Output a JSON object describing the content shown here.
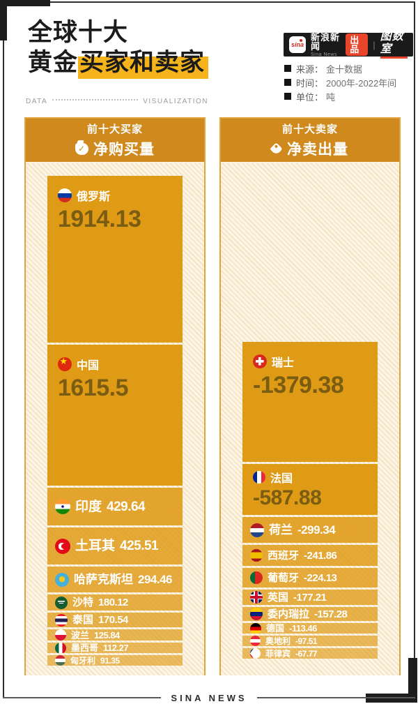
{
  "header": {
    "title_line1": "全球十大",
    "title_line2_prefix": "黄金",
    "title_line2_highlight": "买家和卖家",
    "brand": {
      "sina_mark": "sina",
      "name_cn": "新浪新闻",
      "name_en": "Sina News",
      "badge": "出品",
      "divider": "|",
      "studio": "图数室"
    },
    "meta": [
      {
        "label": "来源：",
        "value": "金十数据"
      },
      {
        "label": "时间：",
        "value": "2000年-2022年间"
      },
      {
        "label": "单位：",
        "value": "吨"
      }
    ]
  },
  "divider": {
    "left": "DATA",
    "right": "VISUALIZATION"
  },
  "footer": {
    "label": "SINA NEWS"
  },
  "colors": {
    "bar_orange": "#DF9A16",
    "header_orange": "#D0891D",
    "panel_border": "#E2A43E",
    "hatch_bg": "#FCF5E6",
    "value_text": "#7A5C12",
    "highlight_yellow": "#F5B31C",
    "badge_red": "#E8452C",
    "frame_black": "#1d1d1d"
  },
  "chart_data": {
    "type": "bar",
    "title": "全球十大黄金买家和卖家",
    "source": "金十数据",
    "period": "2000年-2022年间",
    "unit": "吨",
    "orientation": "vertical-proportional-blocks",
    "legend_position": "column-headers",
    "series": [
      {
        "name": "前十大买家",
        "metric": "净购买量",
        "icon": "money-bag-icon",
        "points": [
          {
            "label": "俄罗斯",
            "flag": "flag-ru",
            "value": 1914.13,
            "display": "1914.13"
          },
          {
            "label": "中国",
            "flag": "flag-cn",
            "value": 1615.5,
            "display": "1615.5"
          },
          {
            "label": "印度",
            "flag": "flag-in",
            "value": 429.64,
            "display": "429.64"
          },
          {
            "label": "土耳其",
            "flag": "flag-tr",
            "value": 425.51,
            "display": "425.51"
          },
          {
            "label": "哈萨克斯坦",
            "flag": "flag-kz",
            "value": 294.46,
            "display": "294.46"
          },
          {
            "label": "沙特",
            "flag": "flag-sa",
            "value": 180.12,
            "display": "180.12"
          },
          {
            "label": "泰国",
            "flag": "flag-th",
            "value": 170.54,
            "display": "170.54"
          },
          {
            "label": "波兰",
            "flag": "flag-pl",
            "value": 125.84,
            "display": "125.84"
          },
          {
            "label": "墨西哥",
            "flag": "flag-mx",
            "value": 112.27,
            "display": "112.27"
          },
          {
            "label": "匈牙利",
            "flag": "flag-hu",
            "value": 91.35,
            "display": "91.35"
          }
        ]
      },
      {
        "name": "前十大卖家",
        "metric": "净卖出量",
        "icon": "price-tag-icon",
        "points": [
          {
            "label": "瑞士",
            "flag": "flag-ch",
            "value": -1379.38,
            "display": "-1379.38"
          },
          {
            "label": "法国",
            "flag": "flag-fr",
            "value": -587.88,
            "display": "-587.88"
          },
          {
            "label": "荷兰",
            "flag": "flag-nl",
            "value": -299.34,
            "display": "-299.34"
          },
          {
            "label": "西班牙",
            "flag": "flag-es",
            "value": -241.86,
            "display": "-241.86"
          },
          {
            "label": "葡萄牙",
            "flag": "flag-pt",
            "value": -224.13,
            "display": "-224.13"
          },
          {
            "label": "英国",
            "flag": "flag-gb",
            "value": -177.21,
            "display": "-177.21"
          },
          {
            "label": "委内瑞拉",
            "flag": "flag-ve",
            "value": -157.28,
            "display": "-157.28"
          },
          {
            "label": "德国",
            "flag": "flag-de",
            "value": -113.46,
            "display": "-113.46"
          },
          {
            "label": "奥地利",
            "flag": "flag-at",
            "value": -97.51,
            "display": "-97.51"
          },
          {
            "label": "菲律宾",
            "flag": "flag-ph",
            "value": -67.77,
            "display": "-67.77"
          }
        ]
      }
    ]
  }
}
